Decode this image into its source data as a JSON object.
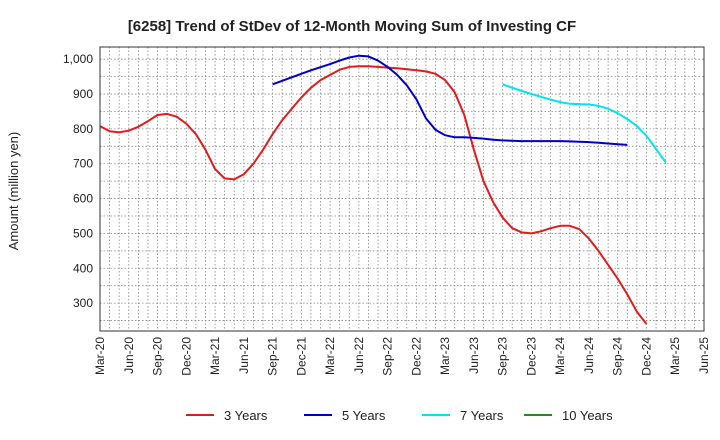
{
  "chart_data": {
    "type": "line",
    "title": "[6258]  Trend of StDev of 12-Month Moving Sum of Investing CF",
    "xlabel": "",
    "ylabel": "Amount (million yen)",
    "ylim": [
      220,
      1035
    ],
    "yticks": [
      300,
      400,
      500,
      600,
      700,
      800,
      900,
      1000
    ],
    "ytick_labels": [
      "300",
      "400",
      "500",
      "600",
      "700",
      "800",
      "900",
      "1,000"
    ],
    "x_tick_labels": [
      "Mar-20",
      "Jun-20",
      "Sep-20",
      "Dec-20",
      "Mar-21",
      "Jun-21",
      "Sep-21",
      "Dec-21",
      "Mar-22",
      "Jun-22",
      "Sep-22",
      "Dec-22",
      "Mar-23",
      "Jun-23",
      "Sep-23",
      "Dec-23",
      "Mar-24",
      "Jun-24",
      "Sep-24",
      "Dec-24",
      "Mar-25",
      "Jun-25"
    ],
    "grid": true,
    "legend_position": "bottom",
    "series": [
      {
        "name": "3 Years",
        "color": "#e41a1c",
        "start_index": 0,
        "values": [
          808,
          793,
          790,
          795,
          806,
          822,
          840,
          843,
          835,
          815,
          785,
          740,
          685,
          658,
          655,
          670,
          700,
          740,
          785,
          825,
          858,
          890,
          918,
          940,
          955,
          970,
          978,
          980,
          980,
          978,
          976,
          974,
          971,
          968,
          965,
          958,
          940,
          905,
          840,
          740,
          650,
          590,
          545,
          515,
          503,
          500,
          506,
          515,
          522,
          522,
          512,
          485,
          450,
          410,
          370,
          325,
          275,
          240
        ]
      },
      {
        "name": "5 Years",
        "color": "#0000cc",
        "start_index": 18,
        "values": [
          928,
          938,
          948,
          958,
          968,
          977,
          986,
          996,
          1005,
          1010,
          1008,
          996,
          978,
          955,
          925,
          885,
          830,
          797,
          782,
          776,
          776,
          774,
          772,
          769,
          767,
          766,
          765,
          765,
          765,
          765,
          765,
          764,
          763,
          762,
          760,
          758,
          756,
          754
        ]
      },
      {
        "name": "7 Years",
        "color": "#00e5ee",
        "start_index": 42,
        "values": [
          928,
          918,
          909,
          900,
          892,
          884,
          877,
          872,
          871,
          870,
          866,
          858,
          845,
          828,
          808,
          780,
          742,
          704
        ]
      },
      {
        "name": "10 Years",
        "color": "#228b22",
        "start_index": 0,
        "values": []
      }
    ]
  }
}
